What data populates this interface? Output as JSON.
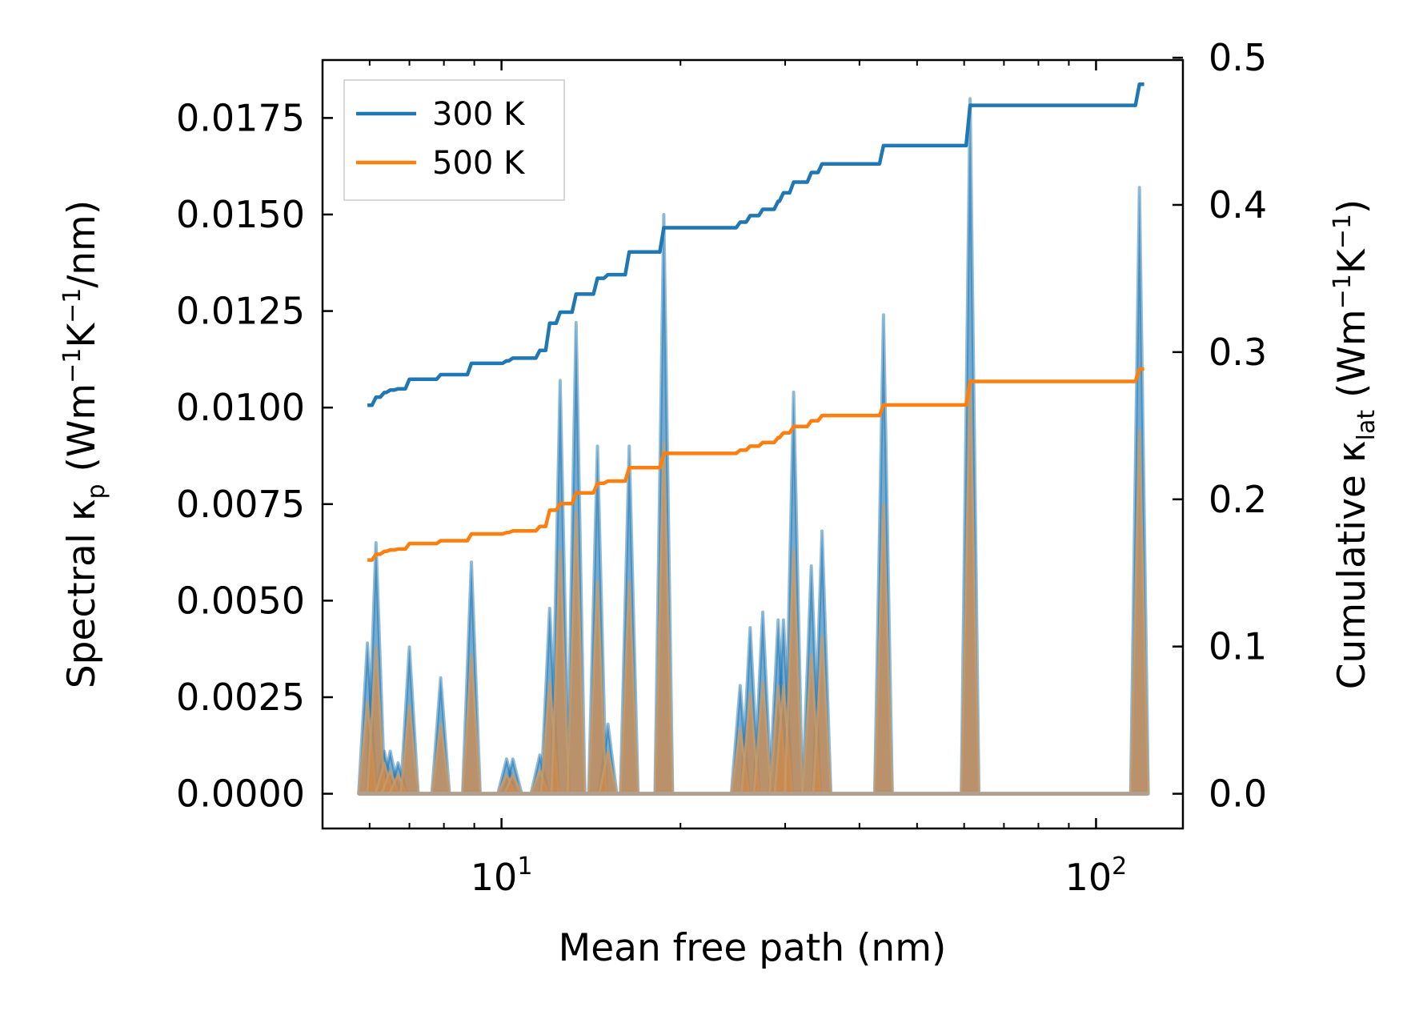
{
  "chart_data": {
    "type": "line",
    "title": "",
    "xlabel": "Mean free path (nm)",
    "ylabel_left": {
      "pre": "Spectral κ",
      "sub": "p",
      "post": " (Wm",
      "sup1": "−1",
      "mid": "K",
      "sup2": "−1",
      "end": "/nm)"
    },
    "ylabel_right": {
      "pre": "Cumulative κ",
      "sub": "lat",
      "post": " (Wm",
      "sup1": "−1",
      "mid": "K",
      "sup2": "−1",
      "end": ")"
    },
    "x_scale": "log",
    "xlim": [
      5.0,
      140.0
    ],
    "ylim_left": [
      -0.0009,
      0.019
    ],
    "ylim_right": [
      -0.0236,
      0.4984
    ],
    "x_ticks": [
      {
        "value": 10,
        "base": "10",
        "exp": "1"
      },
      {
        "value": 100,
        "base": "10",
        "exp": "2"
      }
    ],
    "y_left_ticks": [
      "0.0000",
      "0.0025",
      "0.0050",
      "0.0075",
      "0.0100",
      "0.0125",
      "0.0150",
      "0.0175"
    ],
    "y_right_ticks": [
      "0.0",
      "0.1",
      "0.2",
      "0.3",
      "0.4",
      "0.5"
    ],
    "legend": {
      "position": "top-left",
      "entries": [
        "300 K",
        "500 K"
      ]
    },
    "colors": {
      "300K": "#1f77b4",
      "500K": "#ff7f0e",
      "fill_300K": "#1f77b4",
      "fill_500K": "#d08a4a"
    },
    "spectral_peaks": {
      "series_300K": [
        [
          5.95,
          0.0039
        ],
        [
          6.15,
          0.0065
        ],
        [
          6.35,
          0.0011
        ],
        [
          6.5,
          0.0011
        ],
        [
          6.7,
          0.0008
        ],
        [
          7.0,
          0.0038
        ],
        [
          7.9,
          0.003
        ],
        [
          8.9,
          0.006
        ],
        [
          10.2,
          0.0009
        ],
        [
          10.45,
          0.0009
        ],
        [
          11.6,
          0.001
        ],
        [
          12.05,
          0.0048
        ],
        [
          12.55,
          0.0107
        ],
        [
          13.35,
          0.0122
        ],
        [
          14.5,
          0.009
        ],
        [
          15.1,
          0.0018
        ],
        [
          16.4,
          0.009
        ],
        [
          18.75,
          0.015
        ],
        [
          25.2,
          0.0028
        ],
        [
          26.2,
          0.0043
        ],
        [
          27.5,
          0.0047
        ],
        [
          29.2,
          0.0045
        ],
        [
          29.8,
          0.0045
        ],
        [
          31.0,
          0.0104
        ],
        [
          33.2,
          0.0059
        ],
        [
          34.6,
          0.0068
        ],
        [
          43.9,
          0.0124
        ],
        [
          61.4,
          0.018
        ],
        [
          118.3,
          0.0157
        ]
      ],
      "series_500K": [
        [
          5.95,
          0.0024
        ],
        [
          6.15,
          0.0038
        ],
        [
          6.35,
          0.0008
        ],
        [
          6.5,
          0.0006
        ],
        [
          6.7,
          0.0005
        ],
        [
          7.0,
          0.0023
        ],
        [
          7.9,
          0.0018
        ],
        [
          8.9,
          0.0036
        ],
        [
          10.2,
          0.0005
        ],
        [
          10.45,
          0.0005
        ],
        [
          11.6,
          0.0006
        ],
        [
          12.05,
          0.0029
        ],
        [
          12.55,
          0.0063
        ],
        [
          13.35,
          0.0073
        ],
        [
          14.5,
          0.0055
        ],
        [
          15.1,
          0.0011
        ],
        [
          16.4,
          0.0055
        ],
        [
          18.75,
          0.0091
        ],
        [
          25.2,
          0.0017
        ],
        [
          26.2,
          0.0026
        ],
        [
          27.5,
          0.0029
        ],
        [
          29.2,
          0.0028
        ],
        [
          29.8,
          0.0028
        ],
        [
          31.0,
          0.0063
        ],
        [
          33.2,
          0.0036
        ],
        [
          34.6,
          0.0041
        ],
        [
          43.9,
          0.0075
        ],
        [
          61.4,
          0.0107
        ],
        [
          118.3,
          0.0094
        ]
      ]
    },
    "cumulative": {
      "series_300K": [
        [
          5.95,
          0.2639
        ],
        [
          6.15,
          0.2694
        ],
        [
          6.35,
          0.2725
        ],
        [
          6.5,
          0.2742
        ],
        [
          6.7,
          0.2751
        ],
        [
          7.0,
          0.2816
        ],
        [
          7.9,
          0.2847
        ],
        [
          8.9,
          0.2924
        ],
        [
          10.2,
          0.2941
        ],
        [
          10.45,
          0.2959
        ],
        [
          11.6,
          0.3012
        ],
        [
          12.05,
          0.3196
        ],
        [
          12.55,
          0.3271
        ],
        [
          13.35,
          0.3394
        ],
        [
          14.5,
          0.3502
        ],
        [
          15.1,
          0.3526
        ],
        [
          16.4,
          0.368
        ],
        [
          18.75,
          0.3845
        ],
        [
          25.2,
          0.3883
        ],
        [
          26.2,
          0.3927
        ],
        [
          27.5,
          0.397
        ],
        [
          29.2,
          0.4025
        ],
        [
          29.8,
          0.4082
        ],
        [
          31.0,
          0.4155
        ],
        [
          33.2,
          0.422
        ],
        [
          34.6,
          0.4279
        ],
        [
          43.9,
          0.4403
        ],
        [
          61.4,
          0.4676
        ],
        [
          118.3,
          0.482
        ],
        [
          120.5,
          0.482
        ]
      ],
      "series_500K": [
        [
          5.95,
          0.1588
        ],
        [
          6.15,
          0.1627
        ],
        [
          6.35,
          0.1646
        ],
        [
          6.5,
          0.1656
        ],
        [
          6.7,
          0.1662
        ],
        [
          7.0,
          0.17
        ],
        [
          7.9,
          0.1719
        ],
        [
          8.9,
          0.1765
        ],
        [
          10.2,
          0.1775
        ],
        [
          10.45,
          0.1785
        ],
        [
          11.6,
          0.1816
        ],
        [
          12.05,
          0.1926
        ],
        [
          12.55,
          0.1971
        ],
        [
          13.35,
          0.2044
        ],
        [
          14.5,
          0.2109
        ],
        [
          15.1,
          0.2124
        ],
        [
          16.4,
          0.2215
        ],
        [
          18.75,
          0.2312
        ],
        [
          25.2,
          0.2334
        ],
        [
          26.2,
          0.2361
        ],
        [
          27.5,
          0.2386
        ],
        [
          29.2,
          0.2419
        ],
        [
          29.8,
          0.2452
        ],
        [
          31.0,
          0.2495
        ],
        [
          33.2,
          0.2534
        ],
        [
          34.6,
          0.2569
        ],
        [
          43.9,
          0.2641
        ],
        [
          61.4,
          0.2801
        ],
        [
          118.3,
          0.2885
        ],
        [
          120.5,
          0.2885
        ]
      ]
    }
  }
}
